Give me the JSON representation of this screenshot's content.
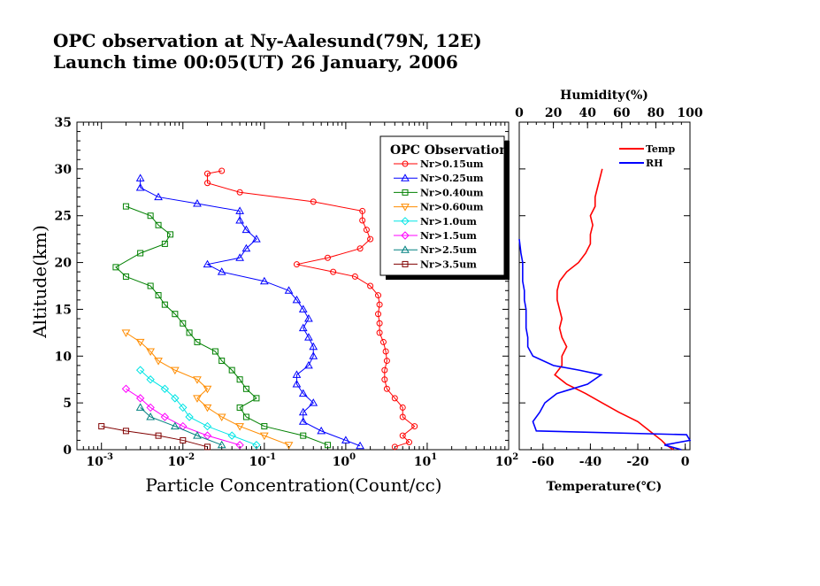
{
  "title": {
    "line1": "OPC observation at Ny-Aalesund(79N, 12E)",
    "line2": "Launch time  00:05(UT)  26 January, 2006"
  },
  "chart_data": [
    {
      "type": "scatter",
      "xlabel": "Particle Concentration(Count/cc)",
      "ylabel": "Altitude(km)",
      "xscale": "log",
      "xlim": [
        0.0005,
        100
      ],
      "ylim": [
        0,
        35
      ],
      "x_tick_labels": [
        "10^-3",
        "10^-2",
        "10^-1",
        "10^0",
        "10^1",
        "10^2"
      ],
      "y_ticks": [
        0,
        5,
        10,
        15,
        20,
        25,
        30,
        35
      ],
      "legend": {
        "title": "OPC Observation",
        "placement": "top-right",
        "entries": [
          {
            "label": "Nr>0.15um",
            "color": "#ff0000",
            "marker": "circle"
          },
          {
            "label": "Nr>0.25um",
            "color": "#0000ff",
            "marker": "triangle"
          },
          {
            "label": "Nr>0.40um",
            "color": "#008000",
            "marker": "square"
          },
          {
            "label": "Nr>0.60um",
            "color": "#ff8c00",
            "marker": "triangle-down"
          },
          {
            "label": "Nr>1.0um",
            "color": "#00e5e5",
            "marker": "diamond"
          },
          {
            "label": "Nr>1.5um",
            "color": "#ff00ff",
            "marker": "diamond"
          },
          {
            "label": "Nr>2.5um",
            "color": "#008080",
            "marker": "triangle"
          },
          {
            "label": "Nr>3.5um",
            "color": "#800000",
            "marker": "square"
          }
        ]
      },
      "series": [
        {
          "color": "#ff0000",
          "marker": "circle",
          "points": [
            [
              4,
              0.3
            ],
            [
              6,
              0.8
            ],
            [
              5,
              1.5
            ],
            [
              7,
              2.5
            ],
            [
              5,
              3.5
            ],
            [
              5,
              4.5
            ],
            [
              4,
              5.5
            ],
            [
              3.2,
              6.5
            ],
            [
              3,
              7.5
            ],
            [
              3,
              8.5
            ],
            [
              3.2,
              9.5
            ],
            [
              3.1,
              10.5
            ],
            [
              2.9,
              11.5
            ],
            [
              2.6,
              12.5
            ],
            [
              2.6,
              13.5
            ],
            [
              2.5,
              14.5
            ],
            [
              2.6,
              15.5
            ],
            [
              2.5,
              16.5
            ],
            [
              2,
              17.5
            ],
            [
              1.3,
              18.5
            ],
            [
              0.7,
              19
            ],
            [
              0.25,
              19.8
            ],
            [
              0.6,
              20.5
            ],
            [
              1.5,
              21.5
            ],
            [
              2,
              22.5
            ],
            [
              1.8,
              23.5
            ],
            [
              1.6,
              24.5
            ],
            [
              1.6,
              25.5
            ],
            [
              0.4,
              26.5
            ],
            [
              0.05,
              27.5
            ],
            [
              0.02,
              28.5
            ],
            [
              0.02,
              29.5
            ],
            [
              0.03,
              29.8
            ]
          ]
        },
        {
          "color": "#0000ff",
          "marker": "triangle",
          "points": [
            [
              1.5,
              0.4
            ],
            [
              1,
              1
            ],
            [
              0.5,
              2
            ],
            [
              0.3,
              3
            ],
            [
              0.3,
              4
            ],
            [
              0.4,
              5
            ],
            [
              0.3,
              6
            ],
            [
              0.25,
              7
            ],
            [
              0.25,
              8
            ],
            [
              0.35,
              9
            ],
            [
              0.4,
              10
            ],
            [
              0.4,
              11
            ],
            [
              0.35,
              12
            ],
            [
              0.3,
              13
            ],
            [
              0.35,
              14
            ],
            [
              0.3,
              15
            ],
            [
              0.25,
              16
            ],
            [
              0.2,
              17
            ],
            [
              0.1,
              18
            ],
            [
              0.03,
              19
            ],
            [
              0.02,
              19.8
            ],
            [
              0.05,
              20.5
            ],
            [
              0.06,
              21.5
            ],
            [
              0.08,
              22.5
            ],
            [
              0.06,
              23.5
            ],
            [
              0.05,
              24.5
            ],
            [
              0.05,
              25.5
            ],
            [
              0.015,
              26.3
            ],
            [
              0.005,
              27
            ],
            [
              0.003,
              28
            ],
            [
              0.003,
              29
            ]
          ]
        },
        {
          "color": "#008000",
          "marker": "square",
          "points": [
            [
              0.6,
              0.5
            ],
            [
              0.3,
              1.5
            ],
            [
              0.1,
              2.5
            ],
            [
              0.06,
              3.5
            ],
            [
              0.05,
              4.5
            ],
            [
              0.08,
              5.5
            ],
            [
              0.06,
              6.5
            ],
            [
              0.05,
              7.5
            ],
            [
              0.04,
              8.5
            ],
            [
              0.03,
              9.5
            ],
            [
              0.025,
              10.5
            ],
            [
              0.015,
              11.5
            ],
            [
              0.012,
              12.5
            ],
            [
              0.01,
              13.5
            ],
            [
              0.008,
              14.5
            ],
            [
              0.006,
              15.5
            ],
            [
              0.005,
              16.5
            ],
            [
              0.004,
              17.5
            ],
            [
              0.002,
              18.5
            ],
            [
              0.0015,
              19.5
            ],
            [
              0.003,
              21
            ],
            [
              0.006,
              22
            ],
            [
              0.007,
              23
            ],
            [
              0.005,
              24
            ],
            [
              0.004,
              25
            ],
            [
              0.002,
              26
            ]
          ]
        },
        {
          "color": "#ff8c00",
          "marker": "triangle-down",
          "points": [
            [
              0.2,
              0.5
            ],
            [
              0.1,
              1.5
            ],
            [
              0.05,
              2.5
            ],
            [
              0.03,
              3.5
            ],
            [
              0.02,
              4.5
            ],
            [
              0.015,
              5.5
            ],
            [
              0.02,
              6.5
            ],
            [
              0.015,
              7.5
            ],
            [
              0.008,
              8.5
            ],
            [
              0.005,
              9.5
            ],
            [
              0.004,
              10.5
            ],
            [
              0.003,
              11.5
            ],
            [
              0.002,
              12.5
            ]
          ]
        },
        {
          "color": "#00e5e5",
          "marker": "diamond",
          "points": [
            [
              0.08,
              0.5
            ],
            [
              0.04,
              1.5
            ],
            [
              0.02,
              2.5
            ],
            [
              0.012,
              3.5
            ],
            [
              0.01,
              4.5
            ],
            [
              0.008,
              5.5
            ],
            [
              0.006,
              6.5
            ],
            [
              0.004,
              7.5
            ],
            [
              0.003,
              8.5
            ]
          ]
        },
        {
          "color": "#ff00ff",
          "marker": "diamond",
          "points": [
            [
              0.05,
              0.5
            ],
            [
              0.02,
              1.5
            ],
            [
              0.01,
              2.5
            ],
            [
              0.006,
              3.5
            ],
            [
              0.004,
              4.5
            ],
            [
              0.003,
              5.5
            ],
            [
              0.002,
              6.5
            ]
          ]
        },
        {
          "color": "#008080",
          "marker": "triangle",
          "points": [
            [
              0.03,
              0.5
            ],
            [
              0.015,
              1.5
            ],
            [
              0.008,
              2.5
            ],
            [
              0.004,
              3.5
            ],
            [
              0.003,
              4.5
            ]
          ]
        },
        {
          "color": "#800000",
          "marker": "square",
          "points": [
            [
              0.02,
              0.3
            ],
            [
              0.01,
              1
            ],
            [
              0.005,
              1.5
            ],
            [
              0.002,
              2
            ],
            [
              0.001,
              2.5
            ]
          ]
        }
      ]
    },
    {
      "type": "line",
      "xlabel": "Temperature(℃)",
      "x2label": "Humidity(%)",
      "xlim": [
        -70,
        2
      ],
      "x2lim": [
        0,
        100
      ],
      "ylim": [
        0,
        35
      ],
      "x_ticks": [
        -60,
        -40,
        -20,
        0
      ],
      "x2_ticks": [
        0,
        20,
        40,
        60,
        80,
        100
      ],
      "legend": {
        "placement": "top-right",
        "entries": [
          {
            "label": "Temp",
            "color": "#ff0000"
          },
          {
            "label": "RH",
            "color": "#0000ff"
          }
        ]
      },
      "series": [
        {
          "axis": "temperature",
          "color": "#ff0000",
          "points": [
            [
              -5,
              0
            ],
            [
              -8,
              0.5
            ],
            [
              -10,
              1
            ],
            [
              -15,
              2
            ],
            [
              -20,
              3
            ],
            [
              -28,
              4
            ],
            [
              -35,
              5
            ],
            [
              -42,
              6
            ],
            [
              -50,
              7
            ],
            [
              -55,
              8
            ],
            [
              -52,
              9
            ],
            [
              -52,
              10
            ],
            [
              -50,
              11
            ],
            [
              -52,
              12
            ],
            [
              -53,
              13
            ],
            [
              -52,
              14
            ],
            [
              -53,
              15
            ],
            [
              -54,
              16
            ],
            [
              -54,
              17
            ],
            [
              -53,
              18
            ],
            [
              -50,
              19
            ],
            [
              -45,
              20
            ],
            [
              -42,
              21
            ],
            [
              -40,
              22
            ],
            [
              -40,
              23
            ],
            [
              -39,
              24
            ],
            [
              -40,
              25
            ],
            [
              -38,
              26
            ],
            [
              -38,
              27
            ],
            [
              -37,
              28
            ],
            [
              -36,
              29
            ],
            [
              -35,
              30
            ]
          ]
        },
        {
          "axis": "humidity",
          "color": "#0000ff",
          "points": [
            [
              95,
              0
            ],
            [
              85,
              0.5
            ],
            [
              100,
              1
            ],
            [
              98,
              1.6
            ],
            [
              10,
              2
            ],
            [
              8,
              3
            ],
            [
              12,
              4
            ],
            [
              15,
              5
            ],
            [
              22,
              6
            ],
            [
              40,
              7
            ],
            [
              48,
              8
            ],
            [
              35,
              8.5
            ],
            [
              20,
              9
            ],
            [
              8,
              10
            ],
            [
              5,
              11
            ],
            [
              5,
              12
            ],
            [
              4,
              13
            ],
            [
              4,
              14
            ],
            [
              4,
              15
            ],
            [
              3,
              16
            ],
            [
              3,
              17
            ],
            [
              2,
              18
            ],
            [
              2,
              19
            ],
            [
              2,
              20
            ],
            [
              1,
              21
            ],
            [
              0,
              22.5
            ]
          ]
        }
      ]
    }
  ]
}
